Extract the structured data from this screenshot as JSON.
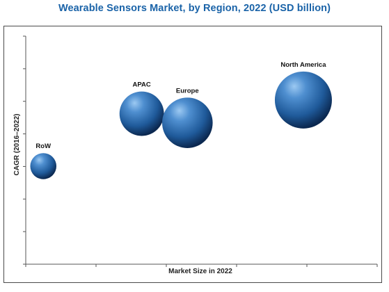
{
  "chart_data": {
    "type": "bubble",
    "title": "Wearable Sensors Market, by Region, 2022 (USD billion)",
    "xlabel": "Market Size in 2022",
    "ylabel": "CAGR (2016–2022)",
    "xlim": [
      0,
      10
    ],
    "ylim": [
      0,
      10
    ],
    "x_tick_labels_shown": false,
    "y_tick_labels_shown": false,
    "grid": false,
    "legend": "none",
    "colors": {
      "title": "#1a63a8",
      "bubble_light": "#7fb6ea",
      "bubble_mid": "#2f6fb0",
      "bubble_dark": "#0d2f5c"
    },
    "series": [
      {
        "name": "RoW",
        "x": 0.5,
        "y": 4.3,
        "size": 0.08
      },
      {
        "name": "APAC",
        "x": 3.3,
        "y": 6.6,
        "size": 0.5
      },
      {
        "name": "Europe",
        "x": 4.6,
        "y": 6.2,
        "size": 0.72
      },
      {
        "name": "North America",
        "x": 7.9,
        "y": 7.2,
        "size": 1.0
      }
    ]
  }
}
